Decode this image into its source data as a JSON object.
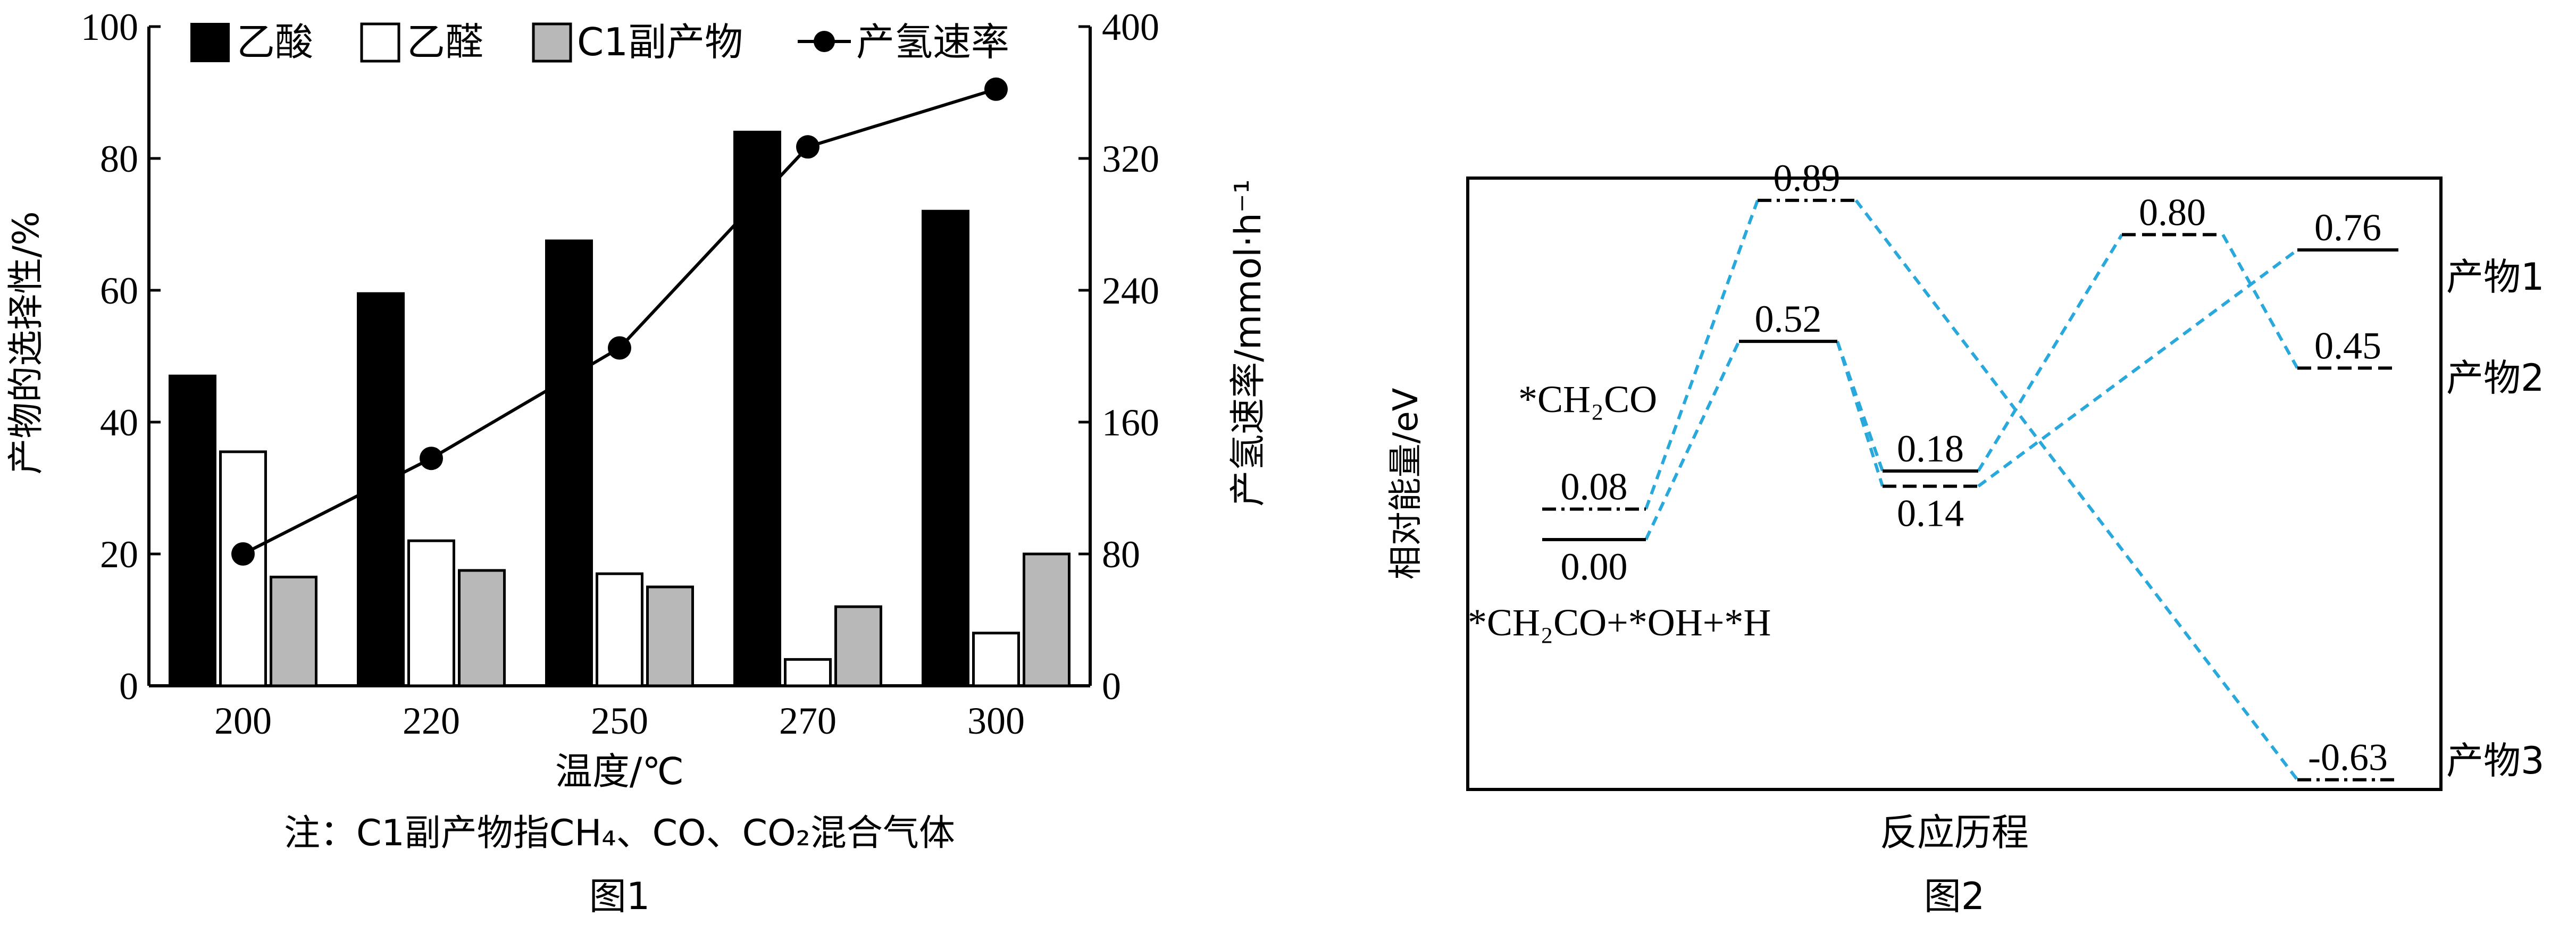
{
  "chart_data": [
    {
      "type": "bar+line",
      "caption": "图1",
      "note": "注：C1副产物指CH₄、CO、CO₂混合气体",
      "xlabel": "温度/℃",
      "ylabel": "产物的选择性/%",
      "y2label": "产氢速率/mmol·h⁻¹",
      "categories": [
        "200",
        "220",
        "250",
        "270",
        "300"
      ],
      "ylim": [
        0,
        100
      ],
      "yticks": [
        "0",
        "20",
        "40",
        "60",
        "80",
        "100"
      ],
      "y2lim": [
        0,
        400
      ],
      "y2ticks": [
        "0",
        "80",
        "160",
        "240",
        "320",
        "400"
      ],
      "series": [
        {
          "name": "乙酸",
          "kind": "bar",
          "axis": "left",
          "color": "#000000",
          "values": [
            47,
            59.5,
            67.5,
            84,
            72
          ]
        },
        {
          "name": "乙醛",
          "kind": "bar",
          "axis": "left",
          "color": "#ffffff",
          "values": [
            35.5,
            22,
            17,
            4,
            8
          ]
        },
        {
          "name": "C1副产物",
          "kind": "bar",
          "axis": "left",
          "color": "#b8b8b8",
          "values": [
            16.5,
            17.5,
            15,
            12,
            20
          ]
        },
        {
          "name": "产氢速率",
          "kind": "line",
          "axis": "right",
          "color": "#000000",
          "values": [
            80,
            138,
            205,
            327,
            362
          ]
        }
      ],
      "legend_position": "top"
    },
    {
      "type": "energy-profile",
      "caption": "图2",
      "xlabel": "反应历程",
      "ylabel": "相对能量/eV",
      "line_color": "#29a8dc",
      "levels": [
        {
          "id": "start_a",
          "value": 0.0,
          "label": "0.00",
          "style": "solid"
        },
        {
          "id": "start_b",
          "value": 0.08,
          "label": "0.08",
          "style": "dashdot"
        },
        {
          "id": "ts1_a",
          "value": 0.89,
          "label": "0.89",
          "style": "dashdot"
        },
        {
          "id": "ts1_b",
          "value": 0.52,
          "label": "0.52",
          "style": "solid"
        },
        {
          "id": "int_a",
          "value": 0.18,
          "label": "0.18",
          "style": "solid"
        },
        {
          "id": "int_b",
          "value": 0.14,
          "label": "0.14",
          "style": "dashed"
        },
        {
          "id": "ts2",
          "value": 0.8,
          "label": "0.80",
          "style": "dashed"
        },
        {
          "id": "p1",
          "value": 0.76,
          "label": "0.76",
          "style": "solid"
        },
        {
          "id": "p2",
          "value": 0.45,
          "label": "0.45",
          "style": "dashed"
        },
        {
          "id": "p3",
          "value": -0.63,
          "label": "-0.63",
          "style": "dashdot"
        }
      ],
      "products": [
        "产物1",
        "产物2",
        "产物3"
      ],
      "species": [
        "*CH₂CO",
        "*CH₂CO+*OH+*H"
      ]
    }
  ]
}
